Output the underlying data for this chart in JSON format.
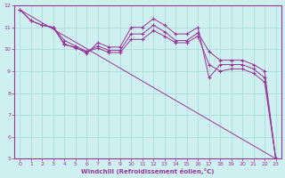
{
  "xlabel": "Windchill (Refroidissement éolien,°C)",
  "bg_color": "#cff0f0",
  "grid_color": "#aadddd",
  "line_color": "#993399",
  "xlim": [
    -0.5,
    23.5
  ],
  "ylim": [
    5,
    12
  ],
  "xticks": [
    0,
    1,
    2,
    3,
    4,
    5,
    6,
    7,
    8,
    9,
    10,
    11,
    12,
    13,
    14,
    15,
    16,
    17,
    18,
    19,
    20,
    21,
    22,
    23
  ],
  "yticks": [
    5,
    6,
    7,
    8,
    9,
    10,
    11,
    12
  ],
  "series": [
    {
      "x": [
        0,
        1,
        2,
        3,
        4,
        5,
        6,
        7,
        8,
        9,
        10,
        11,
        12,
        13,
        14,
        15,
        16,
        17,
        18,
        19,
        20,
        21,
        22,
        23
      ],
      "y": [
        11.8,
        11.3,
        11.1,
        11.0,
        10.2,
        10.1,
        9.8,
        10.3,
        10.1,
        10.1,
        11.0,
        11.0,
        11.4,
        11.1,
        10.7,
        10.7,
        11.0,
        8.7,
        9.3,
        9.3,
        9.3,
        9.1,
        8.7,
        5.0
      ]
    },
    {
      "x": [
        0,
        1,
        2,
        3,
        4,
        5,
        6,
        7,
        8,
        9,
        10,
        11,
        12,
        13,
        14,
        15,
        16,
        17,
        18,
        19,
        20,
        21,
        22,
        23
      ],
      "y": [
        11.8,
        11.3,
        11.1,
        11.0,
        10.4,
        10.15,
        9.9,
        10.15,
        9.95,
        9.95,
        10.7,
        10.7,
        11.1,
        10.8,
        10.4,
        10.4,
        10.75,
        9.9,
        9.5,
        9.5,
        9.5,
        9.3,
        9.0,
        5.0
      ]
    },
    {
      "x": [
        2,
        3,
        4,
        5,
        6,
        7,
        8,
        9,
        10,
        11,
        12,
        13,
        14,
        15,
        16,
        17,
        18,
        19,
        20,
        21,
        22,
        23
      ],
      "y": [
        11.1,
        11.0,
        10.25,
        10.05,
        9.9,
        10.05,
        9.85,
        9.85,
        10.45,
        10.45,
        10.85,
        10.6,
        10.3,
        10.3,
        10.6,
        9.3,
        9.0,
        9.1,
        9.1,
        8.9,
        8.5,
        5.0
      ]
    },
    {
      "x": [
        0,
        23
      ],
      "y": [
        11.8,
        5.0
      ],
      "no_markers": true
    }
  ]
}
